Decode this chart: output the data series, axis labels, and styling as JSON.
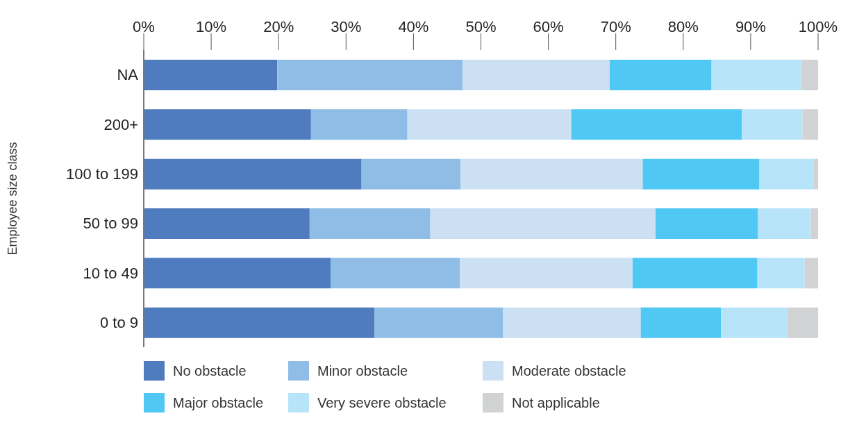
{
  "chart_data": {
    "type": "bar",
    "orientation": "horizontal",
    "stacked": true,
    "ylabel": "Employee size class",
    "categories": [
      "NA",
      "200+",
      "100 to 199",
      "50 to 99",
      "10 to 49",
      "0 to 9"
    ],
    "series": [
      {
        "name": "No obstacle",
        "color": "#4f7bbf",
        "values": [
          19.8,
          24.8,
          32.3,
          24.6,
          27.7,
          34.2
        ]
      },
      {
        "name": "Minor obstacle",
        "color": "#8fbde6",
        "values": [
          27.5,
          14.3,
          14.7,
          17.9,
          19.2,
          19.1
        ]
      },
      {
        "name": "Moderate obstacle",
        "color": "#cbe0f3",
        "values": [
          21.8,
          24.3,
          27.0,
          33.4,
          25.6,
          20.4
        ]
      },
      {
        "name": "Major obstacle",
        "color": "#50c8f4",
        "values": [
          15.1,
          25.3,
          17.3,
          15.2,
          18.5,
          11.9
        ]
      },
      {
        "name": "Very severe obstacle",
        "color": "#b7e4f8",
        "values": [
          13.3,
          9.0,
          8.0,
          7.8,
          7.0,
          9.9
        ]
      },
      {
        "name": "Not applicable",
        "color": "#d1d2d4",
        "values": [
          2.5,
          2.3,
          0.7,
          1.1,
          2.0,
          4.5
        ]
      }
    ],
    "xlim": [
      0,
      100
    ],
    "xticks": [
      {
        "value": 0,
        "label": "0%"
      },
      {
        "value": 10,
        "label": "10%"
      },
      {
        "value": 20,
        "label": "20%"
      },
      {
        "value": 30,
        "label": "30%"
      },
      {
        "value": 40,
        "label": "40%"
      },
      {
        "value": 50,
        "label": "50%"
      },
      {
        "value": 60,
        "label": "60%"
      },
      {
        "value": 70,
        "label": "70%"
      },
      {
        "value": 80,
        "label": "80%"
      },
      {
        "value": 90,
        "label": "90%"
      },
      {
        "value": 100,
        "label": "100%"
      }
    ],
    "legend": "bottom"
  }
}
